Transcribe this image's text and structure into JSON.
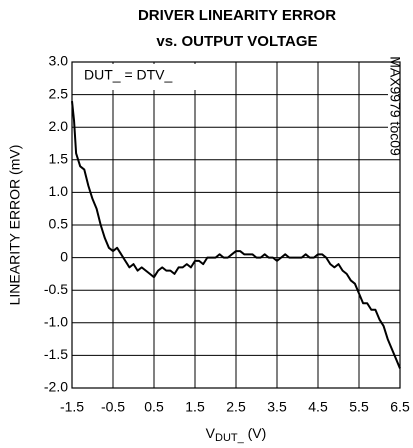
{
  "chart_data": {
    "type": "line",
    "title": [
      "DRIVER LINEARITY ERROR",
      "vs. OUTPUT VOLTAGE"
    ],
    "xlabel": {
      "main": "V",
      "sub": "DUT_",
      "rest": " (V)"
    },
    "ylabel": "LINEARITY ERROR (mV)",
    "annotation": "DUT_ = DTV_",
    "side_note": "MAX9979 toc09",
    "color": "#000000",
    "grid": true,
    "xlim": [
      -1.5,
      6.5
    ],
    "ylim": [
      -2.0,
      3.0
    ],
    "xticks": [
      -1.5,
      -0.5,
      0.5,
      1.5,
      2.5,
      3.5,
      4.5,
      5.5,
      6.5
    ],
    "yticks": [
      {
        "value": 3.0,
        "label": "3.0"
      },
      2.5,
      {
        "value": 2.0,
        "label": "2.0"
      },
      1.5,
      {
        "value": 1.0,
        "label": "1.0"
      },
      0.5,
      0,
      -0.5,
      {
        "value": -1.0,
        "label": "-1.0"
      },
      -1.5,
      {
        "value": -2.0,
        "label": "-2.0"
      }
    ],
    "x": [
      -1.5,
      -1.45,
      -1.4,
      -1.3,
      -1.2,
      -1.1,
      -1.0,
      -0.9,
      -0.8,
      -0.7,
      -0.6,
      -0.5,
      -0.4,
      -0.3,
      -0.2,
      -0.1,
      0,
      0.1,
      0.2,
      0.3,
      0.4,
      0.5,
      0.6,
      0.7,
      0.8,
      0.9,
      1.0,
      1.1,
      1.2,
      1.3,
      1.4,
      1.5,
      1.6,
      1.7,
      1.8,
      1.9,
      2.0,
      2.1,
      2.2,
      2.3,
      2.4,
      2.5,
      2.6,
      2.7,
      2.8,
      2.9,
      3.0,
      3.1,
      3.2,
      3.3,
      3.4,
      3.5,
      3.6,
      3.7,
      3.8,
      3.9,
      4.0,
      4.1,
      4.2,
      4.3,
      4.4,
      4.5,
      4.6,
      4.7,
      4.8,
      4.9,
      5.0,
      5.1,
      5.2,
      5.3,
      5.4,
      5.5,
      5.6,
      5.7,
      5.8,
      5.9,
      6.0,
      6.1,
      6.2,
      6.3,
      6.4,
      6.5
    ],
    "values": [
      2.4,
      2.1,
      1.6,
      1.4,
      1.35,
      1.1,
      0.9,
      0.75,
      0.5,
      0.3,
      0.15,
      0.1,
      0.15,
      0.05,
      -0.05,
      -0.15,
      -0.1,
      -0.2,
      -0.15,
      -0.2,
      -0.25,
      -0.3,
      -0.2,
      -0.15,
      -0.2,
      -0.2,
      -0.25,
      -0.15,
      -0.15,
      -0.1,
      -0.15,
      -0.05,
      -0.05,
      -0.1,
      0,
      0,
      0,
      0.05,
      0,
      0,
      0.05,
      0.1,
      0.1,
      0.05,
      0.05,
      0.05,
      0,
      0,
      0.05,
      0,
      0,
      -0.05,
      0,
      0.05,
      0,
      0,
      0,
      0,
      0.05,
      0,
      0,
      0.05,
      0.05,
      0,
      -0.1,
      -0.15,
      -0.1,
      -0.2,
      -0.25,
      -0.35,
      -0.4,
      -0.55,
      -0.7,
      -0.7,
      -0.8,
      -0.8,
      -0.95,
      -1.05,
      -1.25,
      -1.4,
      -1.55,
      -1.7
    ]
  }
}
